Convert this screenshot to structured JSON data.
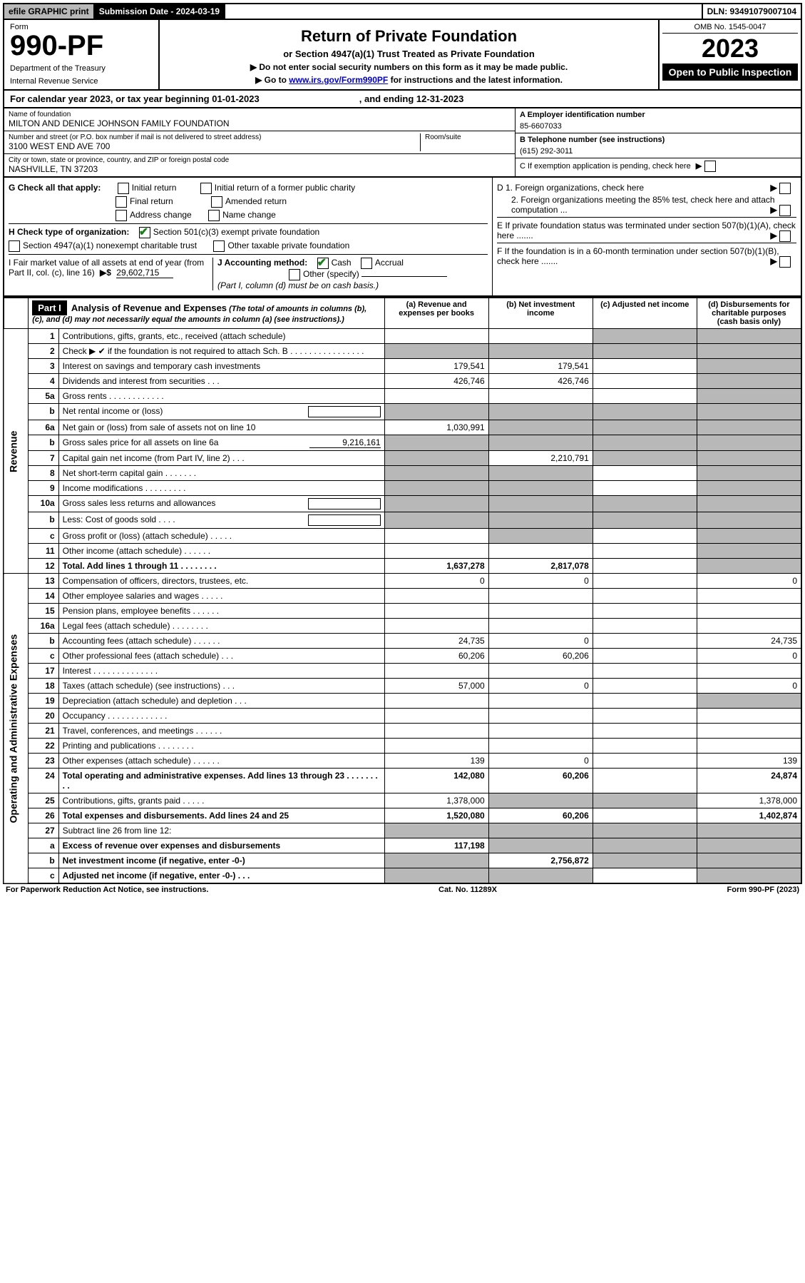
{
  "topbar": {
    "efile": "efile GRAPHIC print",
    "subdate_label": "Submission Date - 2024-03-19",
    "dln": "DLN: 93491079007104"
  },
  "header": {
    "form_label": "Form",
    "form_number": "990-PF",
    "dept": "Department of the Treasury",
    "irs": "Internal Revenue Service",
    "title": "Return of Private Foundation",
    "subtitle": "or Section 4947(a)(1) Trust Treated as Private Foundation",
    "note1": "▶ Do not enter social security numbers on this form as it may be made public.",
    "note2_pre": "▶ Go to ",
    "note2_link": "www.irs.gov/Form990PF",
    "note2_post": " for instructions and the latest information.",
    "omb": "OMB No. 1545-0047",
    "year": "2023",
    "open": "Open to Public Inspection"
  },
  "calyear": {
    "text_pre": "For calendar year 2023, or tax year beginning 01-01-2023",
    "text_mid": ", and ending 12-31-2023"
  },
  "info": {
    "name_label": "Name of foundation",
    "name": "MILTON AND DENICE JOHNSON FAMILY FOUNDATION",
    "addr_label": "Number and street (or P.O. box number if mail is not delivered to street address)",
    "addr": "3100 WEST END AVE 700",
    "room_label": "Room/suite",
    "city_label": "City or town, state or province, country, and ZIP or foreign postal code",
    "city": "NASHVILLE, TN  37203",
    "ein_label": "A Employer identification number",
    "ein": "85-6607033",
    "tel_label": "B Telephone number (see instructions)",
    "tel": "(615) 292-3011",
    "c_label": "C If exemption application is pending, check here"
  },
  "checks": {
    "g_label": "G Check all that apply:",
    "g_opts": [
      "Initial return",
      "Initial return of a former public charity",
      "Final return",
      "Amended return",
      "Address change",
      "Name change"
    ],
    "h_label": "H Check type of organization:",
    "h_opt1": "Section 501(c)(3) exempt private foundation",
    "h_opt2": "Section 4947(a)(1) nonexempt charitable trust",
    "h_opt3": "Other taxable private foundation",
    "i_label": "I Fair market value of all assets at end of year (from Part II, col. (c), line 16)",
    "i_value": "29,602,715",
    "j_label": "J Accounting method:",
    "j_opts": [
      "Cash",
      "Accrual",
      "Other (specify)"
    ],
    "j_note": "(Part I, column (d) must be on cash basis.)",
    "d1": "D 1. Foreign organizations, check here",
    "d2": "2. Foreign organizations meeting the 85% test, check here and attach computation ...",
    "e": "E  If private foundation status was terminated under section 507(b)(1)(A), check here .......",
    "f": "F  If the foundation is in a 60-month termination under section 507(b)(1)(B), check here ......."
  },
  "part1": {
    "label": "Part I",
    "title": "Analysis of Revenue and Expenses",
    "title_note": "(The total of amounts in columns (b), (c), and (d) may not necessarily equal the amounts in column (a) (see instructions).)",
    "col_a": "(a) Revenue and expenses per books",
    "col_b": "(b) Net investment income",
    "col_c": "(c) Adjusted net income",
    "col_d": "(d) Disbursements for charitable purposes (cash basis only)",
    "vert_revenue": "Revenue",
    "vert_expenses": "Operating and Administrative Expenses"
  },
  "rows": [
    {
      "n": "1",
      "desc": "Contributions, gifts, grants, etc., received (attach schedule)",
      "a": "",
      "b": "",
      "c": "shade",
      "d": "shade"
    },
    {
      "n": "2",
      "desc": "Check ▶ ✔ if the foundation is not required to attach Sch. B   .  .  .  .  .  .  .  .  .  .  .  .  .  .  .  .",
      "a": "shade",
      "b": "shade",
      "c": "shade",
      "d": "shade",
      "checkmark": true
    },
    {
      "n": "3",
      "desc": "Interest on savings and temporary cash investments",
      "a": "179,541",
      "b": "179,541",
      "c": "",
      "d": "shade"
    },
    {
      "n": "4",
      "desc": "Dividends and interest from securities    .   .   .",
      "a": "426,746",
      "b": "426,746",
      "c": "",
      "d": "shade"
    },
    {
      "n": "5a",
      "desc": "Gross rents    .   .   .   .   .   .   .   .   .   .   .   .",
      "a": "",
      "b": "",
      "c": "",
      "d": "shade"
    },
    {
      "n": "b",
      "desc": "Net rental income or (loss)",
      "a": "shade",
      "b": "shade",
      "c": "shade",
      "d": "shade",
      "inline_box": true
    },
    {
      "n": "6a",
      "desc": "Net gain or (loss) from sale of assets not on line 10",
      "a": "1,030,991",
      "b": "shade",
      "c": "shade",
      "d": "shade"
    },
    {
      "n": "b",
      "desc": "Gross sales price for all assets on line 6a",
      "a": "shade",
      "b": "shade",
      "c": "shade",
      "d": "shade",
      "inline_val": "9,216,161"
    },
    {
      "n": "7",
      "desc": "Capital gain net income (from Part IV, line 2)   .   .   .",
      "a": "shade",
      "b": "2,210,791",
      "c": "shade",
      "d": "shade"
    },
    {
      "n": "8",
      "desc": "Net short-term capital gain   .   .   .   .   .   .   .",
      "a": "shade",
      "b": "shade",
      "c": "",
      "d": "shade"
    },
    {
      "n": "9",
      "desc": "Income modifications  .   .   .   .   .   .   .   .   .",
      "a": "shade",
      "b": "shade",
      "c": "",
      "d": "shade"
    },
    {
      "n": "10a",
      "desc": "Gross sales less returns and allowances",
      "a": "shade",
      "b": "shade",
      "c": "shade",
      "d": "shade",
      "inline_box": true
    },
    {
      "n": "b",
      "desc": "Less: Cost of goods sold     .   .   .   .",
      "a": "shade",
      "b": "shade",
      "c": "shade",
      "d": "shade",
      "inline_box": true
    },
    {
      "n": "c",
      "desc": "Gross profit or (loss) (attach schedule)    .   .   .   .   .",
      "a": "",
      "b": "shade",
      "c": "",
      "d": "shade"
    },
    {
      "n": "11",
      "desc": "Other income (attach schedule)    .   .   .   .   .   .",
      "a": "",
      "b": "",
      "c": "",
      "d": "shade"
    },
    {
      "n": "12",
      "desc": "Total. Add lines 1 through 11   .   .   .   .   .   .   .   .",
      "a": "1,637,278",
      "b": "2,817,078",
      "c": "",
      "d": "shade",
      "bold": true
    },
    {
      "n": "13",
      "desc": "Compensation of officers, directors, trustees, etc.",
      "a": "0",
      "b": "0",
      "c": "",
      "d": "0"
    },
    {
      "n": "14",
      "desc": "Other employee salaries and wages    .   .   .   .   .",
      "a": "",
      "b": "",
      "c": "",
      "d": ""
    },
    {
      "n": "15",
      "desc": "Pension plans, employee benefits  .   .   .   .   .   .",
      "a": "",
      "b": "",
      "c": "",
      "d": ""
    },
    {
      "n": "16a",
      "desc": "Legal fees (attach schedule) .   .   .   .   .   .   .   .",
      "a": "",
      "b": "",
      "c": "",
      "d": ""
    },
    {
      "n": "b",
      "desc": "Accounting fees (attach schedule) .   .   .   .   .   .",
      "a": "24,735",
      "b": "0",
      "c": "",
      "d": "24,735"
    },
    {
      "n": "c",
      "desc": "Other professional fees (attach schedule)    .   .   .",
      "a": "60,206",
      "b": "60,206",
      "c": "",
      "d": "0"
    },
    {
      "n": "17",
      "desc": "Interest .   .   .   .   .   .   .   .   .   .   .   .   .   .",
      "a": "",
      "b": "",
      "c": "",
      "d": ""
    },
    {
      "n": "18",
      "desc": "Taxes (attach schedule) (see instructions)    .   .   .",
      "a": "57,000",
      "b": "0",
      "c": "",
      "d": "0"
    },
    {
      "n": "19",
      "desc": "Depreciation (attach schedule) and depletion   .   .   .",
      "a": "",
      "b": "",
      "c": "",
      "d": "shade"
    },
    {
      "n": "20",
      "desc": "Occupancy .   .   .   .   .   .   .   .   .   .   .   .   .",
      "a": "",
      "b": "",
      "c": "",
      "d": ""
    },
    {
      "n": "21",
      "desc": "Travel, conferences, and meetings .   .   .   .   .   .",
      "a": "",
      "b": "",
      "c": "",
      "d": ""
    },
    {
      "n": "22",
      "desc": "Printing and publications  .   .   .   .   .   .   .   .",
      "a": "",
      "b": "",
      "c": "",
      "d": ""
    },
    {
      "n": "23",
      "desc": "Other expenses (attach schedule) .   .   .   .   .   .",
      "a": "139",
      "b": "0",
      "c": "",
      "d": "139"
    },
    {
      "n": "24",
      "desc": "Total operating and administrative expenses. Add lines 13 through 23   .   .   .   .   .   .   .   .   .",
      "a": "142,080",
      "b": "60,206",
      "c": "",
      "d": "24,874",
      "bold": true
    },
    {
      "n": "25",
      "desc": "Contributions, gifts, grants paid     .   .   .   .   .",
      "a": "1,378,000",
      "b": "shade",
      "c": "shade",
      "d": "1,378,000"
    },
    {
      "n": "26",
      "desc": "Total expenses and disbursements. Add lines 24 and 25",
      "a": "1,520,080",
      "b": "60,206",
      "c": "",
      "d": "1,402,874",
      "bold": true
    },
    {
      "n": "27",
      "desc": "Subtract line 26 from line 12:",
      "a": "shade",
      "b": "shade",
      "c": "shade",
      "d": "shade"
    },
    {
      "n": "a",
      "desc": "Excess of revenue over expenses and disbursements",
      "a": "117,198",
      "b": "shade",
      "c": "shade",
      "d": "shade",
      "bold": true
    },
    {
      "n": "b",
      "desc": "Net investment income (if negative, enter -0-)",
      "a": "shade",
      "b": "2,756,872",
      "c": "shade",
      "d": "shade",
      "bold": true
    },
    {
      "n": "c",
      "desc": "Adjusted net income (if negative, enter -0-)   .   .   .",
      "a": "shade",
      "b": "shade",
      "c": "",
      "d": "shade",
      "bold": true
    }
  ],
  "footer": {
    "left": "For Paperwork Reduction Act Notice, see instructions.",
    "mid": "Cat. No. 11289X",
    "right": "Form 990-PF (2023)"
  }
}
